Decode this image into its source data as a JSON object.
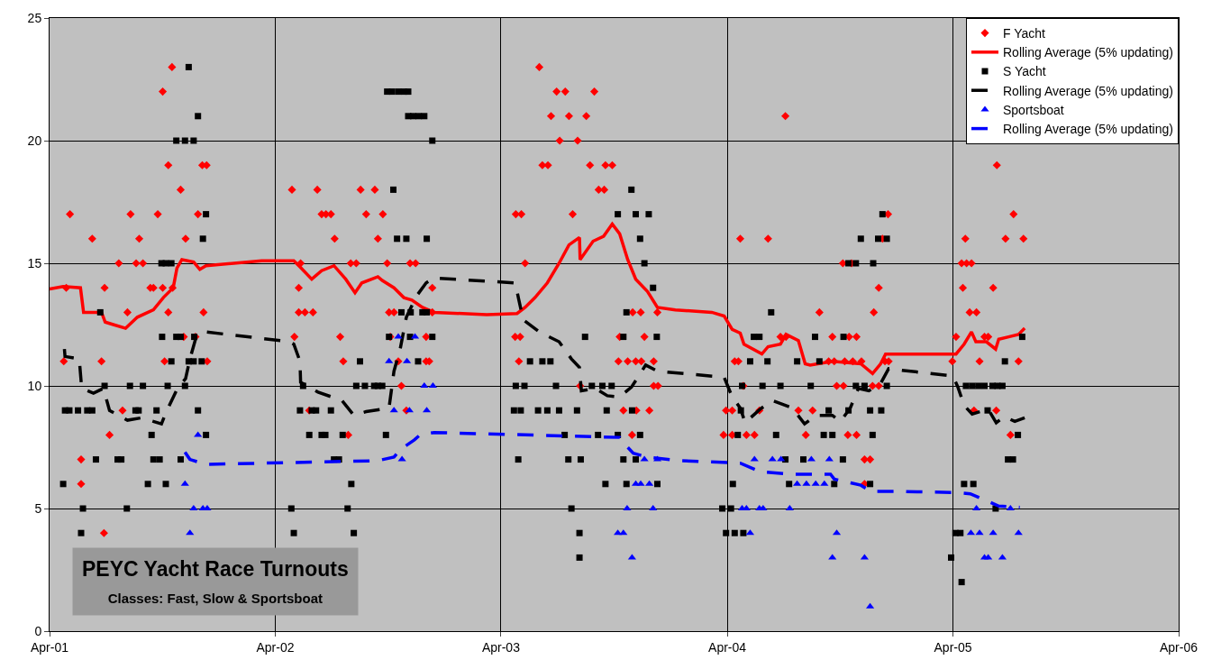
{
  "chart_data": {
    "type": "scatter",
    "title": "PEYC Yacht Race Turnouts",
    "subtitle": "Classes: Fast, Slow & Sportsboat",
    "xlim": [
      "2001-04-01",
      "2006-04-01"
    ],
    "xticks": [
      {
        "value": "2001-04-01",
        "label": "Apr-01"
      },
      {
        "value": "2002-04-01",
        "label": "Apr-02"
      },
      {
        "value": "2003-04-01",
        "label": "Apr-03"
      },
      {
        "value": "2004-04-01",
        "label": "Apr-04"
      },
      {
        "value": "2005-04-01",
        "label": "Apr-05"
      },
      {
        "value": "2006-04-01",
        "label": "Apr-06"
      }
    ],
    "ylim": [
      0,
      25
    ],
    "yticks": [
      0,
      5,
      10,
      15,
      20,
      25
    ],
    "grid": true,
    "legend": "top right",
    "series": [
      {
        "name": "F Yacht",
        "marker": "diamond",
        "color": "#ff0000",
        "x": [
          "2001-10-16",
          "2001-10-01",
          "2001-10-10",
          "2001-12-04",
          "2001-12-11",
          "2001-10-30",
          "2001-05-04",
          "2001-08-10",
          "2001-09-23",
          "2001-11-27",
          "2001-06-09",
          "2001-08-24",
          "2001-11-07",
          "2001-07-22",
          "2001-08-19",
          "2001-08-30",
          "2001-04-28",
          "2001-06-29",
          "2001-09-11",
          "2001-09-16",
          "2001-10-01",
          "2001-10-17",
          "2001-08-05",
          "2001-10-10",
          "2001-12-06",
          "2001-11-04",
          "2001-11-23",
          "2001-04-24",
          "2001-06-24",
          "2001-10-04",
          "2001-12-12",
          "2001-07-28",
          "2001-07-07",
          "2001-05-22",
          "2001-05-22",
          "2001-06-28",
          "2002-04-28",
          "2002-06-08",
          "2002-08-17",
          "2002-09-09",
          "2002-06-15",
          "2002-06-22",
          "2002-06-30",
          "2002-08-26",
          "2002-09-22",
          "2002-07-06",
          "2002-09-14",
          "2002-05-12",
          "2002-08-01",
          "2002-08-10",
          "2002-09-29",
          "2002-11-05",
          "2002-11-14",
          "2002-05-09",
          "2002-12-11",
          "2002-05-09",
          "2002-05-19",
          "2002-06-01",
          "2002-10-02",
          "2002-10-10",
          "2002-12-11",
          "2002-05-02",
          "2002-07-15",
          "2002-10-04",
          "2002-12-01",
          "2002-07-20",
          "2002-10-17",
          "2002-12-01",
          "2002-12-06",
          "2002-10-22",
          "2002-05-26",
          "2002-10-30",
          "2002-07-28",
          "2003-06-02",
          "2003-06-30",
          "2003-07-14",
          "2003-08-30",
          "2003-06-21",
          "2003-07-20",
          "2003-08-17",
          "2003-07-05",
          "2003-08-03",
          "2003-06-07",
          "2003-06-16",
          "2003-08-23",
          "2003-09-17",
          "2003-09-28",
          "2003-09-06",
          "2003-09-15",
          "2003-04-25",
          "2003-05-04",
          "2003-07-26",
          "2003-05-10",
          "2003-10-31",
          "2003-11-13",
          "2003-12-10",
          "2003-04-24",
          "2003-05-02",
          "2003-10-10",
          "2003-11-19",
          "2003-04-30",
          "2003-10-08",
          "2003-10-23",
          "2003-11-05",
          "2003-11-14",
          "2003-12-04",
          "2003-08-07",
          "2003-12-04",
          "2003-12-11",
          "2003-10-16",
          "2003-11-06",
          "2003-11-27",
          "2003-10-30",
          "2004-07-04",
          "2004-12-17",
          "2004-04-22",
          "2004-06-06",
          "2004-12-08",
          "2004-10-05",
          "2004-10-19",
          "2004-12-02",
          "2004-08-28",
          "2004-11-24",
          "2004-06-26",
          "2004-07-05",
          "2004-09-18",
          "2004-10-15",
          "2004-10-27",
          "2004-04-13",
          "2004-04-19",
          "2004-09-12",
          "2004-09-21",
          "2004-10-08",
          "2004-10-21",
          "2004-11-04",
          "2004-12-12",
          "2004-12-18",
          "2004-04-27",
          "2004-09-25",
          "2004-10-06",
          "2004-11-22",
          "2004-12-02",
          "2004-03-30",
          "2004-04-09",
          "2004-05-23",
          "2004-07-25",
          "2004-08-17",
          "2004-03-26",
          "2004-04-09",
          "2004-05-02",
          "2004-05-15",
          "2004-08-06",
          "2004-10-13",
          "2004-10-27",
          "2004-11-09",
          "2004-11-18",
          "2004-11-09",
          "2005-06-11",
          "2005-07-08",
          "2005-04-21",
          "2005-06-25",
          "2005-07-24",
          "2005-04-15",
          "2005-04-23",
          "2005-05-01",
          "2005-04-17",
          "2005-06-05",
          "2005-04-28",
          "2005-05-09",
          "2005-04-06",
          "2005-05-22",
          "2005-05-28",
          "2005-03-31",
          "2005-05-14",
          "2005-07-16",
          "2005-05-05",
          "2005-06-10",
          "2005-07-03"
        ],
        "values": [
          23,
          22,
          19,
          19,
          19,
          18,
          17,
          17,
          17,
          17,
          16,
          16,
          16,
          15,
          15,
          15,
          14,
          14,
          14,
          14,
          14,
          14,
          13,
          13,
          13,
          12,
          12,
          11,
          11,
          11,
          11,
          9,
          8,
          7,
          6,
          4,
          18,
          18,
          18,
          18,
          17,
          17,
          17,
          17,
          17,
          16,
          16,
          15,
          15,
          15,
          15,
          15,
          15,
          14,
          14,
          13,
          13,
          13,
          13,
          13,
          13,
          12,
          12,
          12,
          12,
          11,
          11,
          11,
          11,
          10,
          9,
          9,
          8,
          23,
          22,
          22,
          22,
          21,
          21,
          21,
          20,
          20,
          19,
          19,
          19,
          19,
          19,
          18,
          18,
          17,
          17,
          17,
          15,
          13,
          13,
          13,
          12,
          12,
          12,
          12,
          11,
          11,
          11,
          11,
          11,
          11,
          10,
          10,
          10,
          9,
          9,
          9,
          8,
          21,
          17,
          16,
          16,
          16,
          15,
          15,
          14,
          13,
          13,
          12,
          12,
          12,
          12,
          12,
          11,
          11,
          11,
          11,
          11,
          11,
          11,
          11,
          11,
          10,
          10,
          10,
          10,
          10,
          9,
          9,
          9,
          9,
          9,
          8,
          8,
          8,
          8,
          8,
          8,
          8,
          7,
          7,
          6,
          19,
          17,
          16,
          16,
          16,
          15,
          15,
          15,
          14,
          14,
          13,
          13,
          12,
          12,
          12,
          11,
          11,
          11,
          9,
          9,
          8
        ]
      },
      {
        "name": "Rolling Average (5% updating)",
        "type": "line",
        "marker": "none",
        "line_style": "solid",
        "color": "#ff0000",
        "x": [
          "2001-04-01",
          "2001-04-23",
          "2001-05-21",
          "2001-05-26",
          "2001-06-24",
          "2001-06-30",
          "2001-07-13",
          "2001-08-02",
          "2001-08-21",
          "2001-09-16",
          "2001-10-02",
          "2001-10-18",
          "2001-10-24",
          "2001-11-01",
          "2001-11-20",
          "2001-11-30",
          "2001-12-10",
          "2002-03-10",
          "2002-05-01",
          "2002-05-11",
          "2002-05-30",
          "2002-06-15",
          "2002-07-05",
          "2002-07-24",
          "2002-08-08",
          "2002-08-19",
          "2002-09-14",
          "2002-09-21",
          "2002-10-10",
          "2002-10-26",
          "2002-11-08",
          "2002-11-25",
          "2002-12-14",
          "2003-03-09",
          "2003-04-27",
          "2003-05-10",
          "2003-05-26",
          "2003-06-15",
          "2003-07-04",
          "2003-07-20",
          "2003-08-06",
          "2003-08-07",
          "2003-08-28",
          "2003-09-14",
          "2003-09-28",
          "2003-10-10",
          "2003-10-23",
          "2003-11-05",
          "2003-11-24",
          "2003-12-10",
          "2004-01-08",
          "2004-03-07",
          "2004-03-27",
          "2004-04-09",
          "2004-04-22",
          "2004-04-28",
          "2004-05-27",
          "2004-06-06",
          "2004-06-26",
          "2004-07-05",
          "2004-07-25",
          "2004-08-05",
          "2004-08-13",
          "2004-09-18",
          "2004-11-03",
          "2004-11-22",
          "2004-12-05",
          "2004-12-13",
          "2005-02-20",
          "2005-04-06",
          "2005-04-19",
          "2005-05-01",
          "2005-05-08",
          "2005-05-25",
          "2005-06-09",
          "2005-06-14",
          "2005-06-30",
          "2005-07-16",
          "2005-07-26"
        ],
        "values": [
          13.95,
          14.05,
          14.0,
          13.0,
          13.0,
          12.6,
          12.5,
          12.35,
          12.8,
          13.1,
          13.6,
          14.0,
          14.8,
          15.15,
          15.05,
          14.75,
          14.9,
          15.1,
          15.1,
          14.85,
          14.35,
          14.7,
          14.9,
          14.35,
          13.8,
          14.2,
          14.45,
          14.3,
          14.0,
          13.6,
          13.5,
          13.2,
          13.0,
          12.9,
          12.95,
          13.2,
          13.6,
          14.2,
          15.0,
          15.75,
          16.05,
          15.15,
          15.9,
          16.1,
          16.6,
          16.2,
          15.15,
          14.35,
          13.85,
          13.2,
          13.1,
          13.0,
          12.85,
          12.3,
          12.15,
          11.7,
          11.3,
          11.6,
          11.7,
          12.1,
          11.85,
          10.9,
          10.85,
          11.0,
          10.9,
          10.5,
          10.9,
          11.3,
          11.3,
          11.3,
          11.7,
          12.2,
          11.8,
          11.8,
          11.5,
          11.9,
          12.0,
          12.1,
          12.35
        ]
      },
      {
        "name": "S Yacht",
        "marker": "square",
        "color": "#000000",
        "x": [
          "2001-11-12",
          "2001-11-27",
          "2001-10-23",
          "2001-11-06",
          "2001-11-20",
          "2001-12-10",
          "2001-12-05",
          "2001-09-29",
          "2001-10-06",
          "2001-10-15",
          "2001-06-22",
          "2001-09-30",
          "2001-10-23",
          "2001-10-30",
          "2001-11-21",
          "2001-10-15",
          "2001-11-12",
          "2001-11-20",
          "2001-12-03",
          "2001-06-29",
          "2001-08-09",
          "2001-08-30",
          "2001-10-09",
          "2001-11-06",
          "2001-04-26",
          "2001-05-03",
          "2001-05-17",
          "2001-06-01",
          "2001-06-09",
          "2001-08-18",
          "2001-08-23",
          "2001-09-21",
          "2001-11-27",
          "2001-09-13",
          "2001-12-10",
          "2001-06-15",
          "2001-07-20",
          "2001-07-26",
          "2001-09-16",
          "2001-09-26",
          "2001-10-30",
          "2001-04-23",
          "2001-09-07",
          "2001-10-06",
          "2001-05-25",
          "2001-08-04",
          "2001-05-22",
          "2002-09-29",
          "2002-10-07",
          "2002-10-17",
          "2002-10-26",
          "2002-11-02",
          "2002-11-02",
          "2002-11-10",
          "2002-11-19",
          "2002-11-28",
          "2002-12-11",
          "2002-10-09",
          "2002-10-15",
          "2002-10-30",
          "2002-12-02",
          "2002-10-22",
          "2002-11-06",
          "2002-11-25",
          "2002-12-02",
          "2002-10-02",
          "2002-11-05",
          "2002-12-11",
          "2002-08-16",
          "2002-11-18",
          "2002-08-10",
          "2002-08-24",
          "2002-09-08",
          "2002-09-14",
          "2002-09-21",
          "2002-05-16",
          "2002-05-11",
          "2002-05-30",
          "2002-06-06",
          "2002-06-30",
          "2002-05-26",
          "2002-06-15",
          "2002-06-21",
          "2002-07-19",
          "2002-09-27",
          "2002-07-05",
          "2002-07-13",
          "2002-08-02",
          "2002-04-27",
          "2002-07-27",
          "2002-05-01",
          "2002-08-06",
          "2003-10-29",
          "2003-10-07",
          "2003-11-05",
          "2003-11-26",
          "2003-11-12",
          "2003-11-19",
          "2003-12-03",
          "2003-10-21",
          "2003-08-15",
          "2003-10-16",
          "2003-12-09",
          "2003-05-18",
          "2003-06-07",
          "2003-06-20",
          "2003-04-25",
          "2003-05-09",
          "2003-06-29",
          "2003-08-26",
          "2003-09-12",
          "2003-09-27",
          "2003-04-22",
          "2003-05-03",
          "2003-05-31",
          "2003-06-15",
          "2003-07-04",
          "2003-08-02",
          "2003-09-19",
          "2003-10-30",
          "2003-07-13",
          "2003-09-05",
          "2003-10-07",
          "2003-11-12",
          "2003-04-29",
          "2003-07-19",
          "2003-08-08",
          "2003-10-16",
          "2003-11-05",
          "2003-09-17",
          "2003-10-21",
          "2003-12-10",
          "2003-07-24",
          "2003-08-06",
          "2003-08-06",
          "2004-12-08",
          "2004-11-03",
          "2004-12-01",
          "2004-12-15",
          "2004-10-14",
          "2004-10-26",
          "2004-11-23",
          "2004-06-11",
          "2004-05-14",
          "2004-05-23",
          "2004-08-21",
          "2004-10-06",
          "2004-05-08",
          "2004-06-05",
          "2004-07-23",
          "2004-08-28",
          "2004-04-25",
          "2004-05-28",
          "2004-06-26",
          "2004-08-14",
          "2004-10-26",
          "2004-11-09",
          "2004-12-15",
          "2004-04-23",
          "2004-09-12",
          "2004-10-14",
          "2004-11-18",
          "2004-12-06",
          "2004-04-18",
          "2004-06-19",
          "2004-09-04",
          "2004-09-18",
          "2004-11-22",
          "2004-07-04",
          "2004-08-02",
          "2004-10-05",
          "2004-04-10",
          "2004-07-10",
          "2004-09-21",
          "2004-11-18",
          "2004-03-24",
          "2004-04-07",
          "2004-03-30",
          "2004-04-13",
          "2004-04-27",
          "2005-07-22",
          "2005-06-24",
          "2005-04-22",
          "2005-05-02",
          "2005-05-12",
          "2005-05-22",
          "2005-06-04",
          "2005-06-12",
          "2005-06-20",
          "2005-05-27",
          "2005-07-15",
          "2005-06-29",
          "2005-07-07",
          "2005-04-19",
          "2005-05-04",
          "2005-06-09",
          "2005-04-05",
          "2005-04-13",
          "2005-03-29",
          "2005-04-15"
        ],
        "values": [
          23,
          21,
          20,
          20,
          20,
          17,
          16,
          15,
          15,
          15,
          13,
          12,
          12,
          12,
          12,
          11,
          11,
          11,
          11,
          10,
          10,
          10,
          10,
          10,
          9,
          9,
          9,
          9,
          9,
          9,
          9,
          9,
          9,
          8,
          8,
          7,
          7,
          7,
          7,
          7,
          7,
          6,
          6,
          6,
          5,
          5,
          4,
          22,
          22,
          22,
          22,
          22,
          21,
          21,
          21,
          21,
          20,
          18,
          16,
          16,
          16,
          13,
          13,
          13,
          13,
          12,
          12,
          12,
          11,
          11,
          10,
          10,
          10,
          10,
          10,
          10,
          9,
          9,
          9,
          9,
          8,
          8,
          8,
          8,
          8,
          7,
          7,
          6,
          5,
          5,
          4,
          4,
          18,
          17,
          17,
          17,
          16,
          15,
          14,
          13,
          12,
          12,
          12,
          11,
          11,
          11,
          10,
          10,
          10,
          10,
          10,
          10,
          9,
          9,
          9,
          9,
          9,
          9,
          9,
          9,
          8,
          8,
          8,
          8,
          7,
          7,
          7,
          7,
          7,
          6,
          6,
          6,
          5,
          4,
          3,
          17,
          16,
          16,
          16,
          15,
          15,
          15,
          13,
          12,
          12,
          12,
          12,
          11,
          11,
          11,
          11,
          10,
          10,
          10,
          10,
          10,
          10,
          10,
          9,
          9,
          9,
          9,
          9,
          8,
          8,
          8,
          8,
          8,
          7,
          7,
          7,
          6,
          6,
          6,
          6,
          5,
          5,
          4,
          4,
          4,
          12,
          11,
          10,
          10,
          10,
          10,
          10,
          10,
          10,
          9,
          8,
          7,
          7,
          6,
          6,
          5,
          4,
          4,
          3,
          2
        ]
      },
      {
        "name": "Rolling Average (5% updating)",
        "type": "line",
        "marker": "none",
        "line_style": "dashed",
        "color": "#000000",
        "x": [
          "2001-04-25",
          "2001-04-26",
          "2001-05-19",
          "2001-05-23",
          "2001-06-11",
          "2001-06-27",
          "2001-07-07",
          "2001-08-05",
          "2001-08-28",
          "2001-09-29",
          "2001-10-06",
          "2001-10-25",
          "2001-11-07",
          "2001-11-14",
          "2001-11-23",
          "2001-12-10",
          "2002-04-24",
          "2002-05-01",
          "2002-05-11",
          "2002-05-12",
          "2002-06-09",
          "2002-07-18",
          "2002-08-06",
          "2002-08-26",
          "2002-10-02",
          "2002-10-10",
          "2002-10-20",
          "2002-10-30",
          "2002-11-15",
          "2002-12-01",
          "2002-12-14",
          "2003-04-24",
          "2003-04-30",
          "2003-05-07",
          "2003-06-02",
          "2003-07-04",
          "2003-07-24",
          "2003-08-06",
          "2003-08-09",
          "2003-09-01",
          "2003-09-20",
          "2003-10-10",
          "2003-10-29",
          "2003-11-11",
          "2003-11-21",
          "2003-12-10",
          "2004-03-27",
          "2004-04-09",
          "2004-04-22",
          "2004-04-30",
          "2004-05-24",
          "2004-06-13",
          "2004-07-15",
          "2004-08-04",
          "2004-08-23",
          "2004-09-18",
          "2004-10-01",
          "2004-10-17",
          "2004-10-30",
          "2004-11-16",
          "2004-12-05",
          "2004-12-18",
          "2005-04-01",
          "2005-04-09",
          "2005-04-19",
          "2005-05-02",
          "2005-05-28",
          "2005-06-10",
          "2005-06-23",
          "2005-07-10",
          "2005-07-26"
        ],
        "values": [
          11.5,
          11.2,
          11.1,
          9.9,
          9.7,
          9.9,
          9.0,
          8.6,
          8.7,
          8.45,
          8.9,
          9.9,
          10.3,
          11.1,
          11.9,
          12.2,
          11.8,
          11.7,
          11.0,
          10.15,
          9.75,
          9.4,
          8.8,
          8.95,
          9.1,
          10.6,
          11.5,
          12.8,
          13.65,
          14.2,
          14.4,
          14.2,
          13.5,
          12.7,
          12.2,
          11.8,
          11.1,
          10.75,
          9.8,
          9.9,
          9.6,
          9.55,
          9.95,
          10.45,
          10.85,
          10.6,
          10.35,
          9.55,
          9.1,
          8.5,
          9.05,
          9.4,
          9.1,
          8.45,
          8.8,
          8.8,
          8.55,
          9.1,
          9.9,
          9.8,
          10.1,
          10.7,
          10.4,
          9.95,
          9.2,
          8.85,
          9.05,
          8.5,
          8.75,
          8.55,
          8.7
        ]
      },
      {
        "name": "Sportsboat",
        "marker": "triangle",
        "color": "#0000ff",
        "x": [
          "2001-11-27",
          "2001-11-06",
          "2001-11-20",
          "2001-12-05",
          "2001-12-12",
          "2001-11-14",
          "2002-10-17",
          "2002-11-13",
          "2002-10-02",
          "2002-10-31",
          "2002-11-28",
          "2002-12-12",
          "2002-10-10",
          "2002-11-04",
          "2002-12-02",
          "2002-10-23",
          "2003-11-19",
          "2003-12-10",
          "2003-11-05",
          "2003-11-13",
          "2003-11-27",
          "2003-10-22",
          "2003-12-03",
          "2003-10-07",
          "2003-10-16",
          "2003-10-30",
          "2004-05-15",
          "2004-06-13",
          "2004-06-27",
          "2004-08-15",
          "2004-09-13",
          "2004-07-23",
          "2004-08-07",
          "2004-08-22",
          "2004-09-05",
          "2004-04-25",
          "2004-05-02",
          "2004-05-23",
          "2004-05-29",
          "2004-07-11",
          "2004-05-08",
          "2004-09-25",
          "2004-09-18",
          "2004-11-09",
          "2004-11-18",
          "2005-05-09",
          "2005-07-03",
          "2005-04-30",
          "2005-05-14",
          "2005-06-05",
          "2005-07-16",
          "2005-05-22",
          "2005-05-28",
          "2005-06-20"
        ],
        "values": [
          8,
          6,
          5,
          5,
          5,
          4,
          12,
          12,
          11,
          11,
          10,
          10,
          9,
          9,
          9,
          7,
          7,
          7,
          6,
          6,
          6,
          5,
          5,
          4,
          4,
          3,
          7,
          7,
          7,
          7,
          7,
          6,
          6,
          6,
          6,
          5,
          5,
          5,
          5,
          5,
          4,
          4,
          3,
          3,
          1,
          5,
          5,
          4,
          4,
          4,
          4,
          3,
          3,
          3
        ]
      },
      {
        "name": "Rolling Average (5% updating)",
        "type": "line",
        "marker": "none",
        "line_style": "dashed",
        "color": "#0000ff",
        "x": [
          "2001-11-06",
          "2001-11-14",
          "2001-12-10",
          "2002-09-14",
          "2002-10-10",
          "2002-10-20",
          "2002-11-12",
          "2002-11-21",
          "2002-12-14",
          "2003-10-10",
          "2003-10-19",
          "2003-11-01",
          "2003-11-24",
          "2004-01-15",
          "2004-04-22",
          "2004-05-24",
          "2004-07-15",
          "2004-09-15",
          "2004-09-21",
          "2004-11-03",
          "2004-11-19",
          "2004-12-28",
          "2005-04-06",
          "2005-04-29",
          "2005-05-22",
          "2005-06-14",
          "2005-07-18"
        ],
        "values": [
          7.3,
          7.0,
          6.8,
          6.95,
          7.1,
          7.4,
          7.8,
          8.0,
          8.1,
          7.9,
          7.6,
          7.25,
          7.1,
          6.95,
          6.85,
          6.5,
          6.4,
          6.4,
          6.2,
          5.95,
          5.7,
          5.7,
          5.65,
          5.6,
          5.35,
          5.1,
          5.05
        ]
      }
    ]
  }
}
